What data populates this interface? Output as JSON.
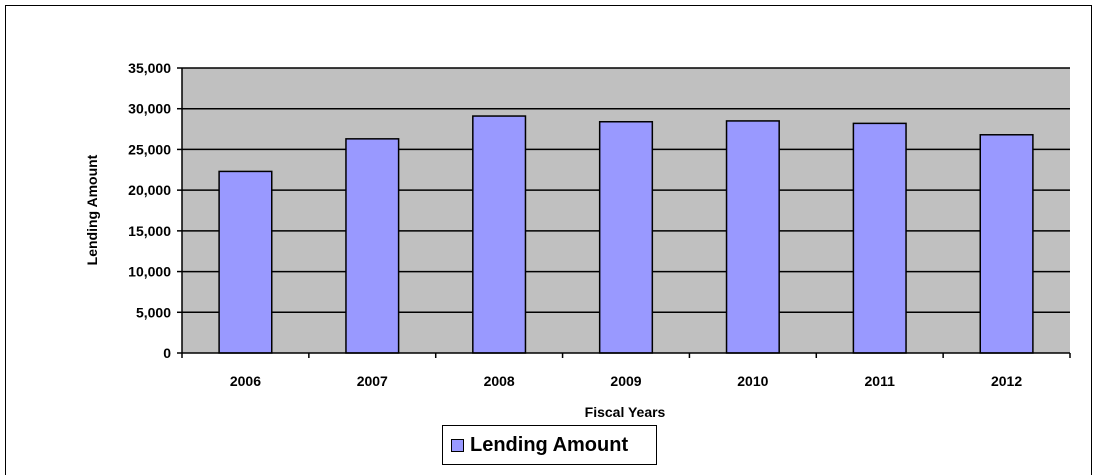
{
  "chart_data": {
    "type": "bar",
    "categories": [
      "2006",
      "2007",
      "2008",
      "2009",
      "2010",
      "2011",
      "2012"
    ],
    "series": [
      {
        "name": "Lending Amount",
        "values": [
          22300,
          26300,
          29100,
          28400,
          28500,
          28200,
          26800
        ]
      }
    ],
    "xlabel": "Fiscal Years",
    "ylabel": "Lending Amount",
    "ylim": [
      0,
      35000
    ],
    "yticks": [
      0,
      5000,
      10000,
      15000,
      20000,
      25000,
      30000,
      35000
    ],
    "ytick_labels": [
      "0",
      "5,000",
      "10,000",
      "15,000",
      "20,000",
      "25,000",
      "30,000",
      "35,000"
    ],
    "grid": true,
    "legend_position": "bottom",
    "colors": {
      "bar": "#9999ff",
      "plot_background": "#c0c0c0",
      "bar_edge": "#000000"
    }
  }
}
